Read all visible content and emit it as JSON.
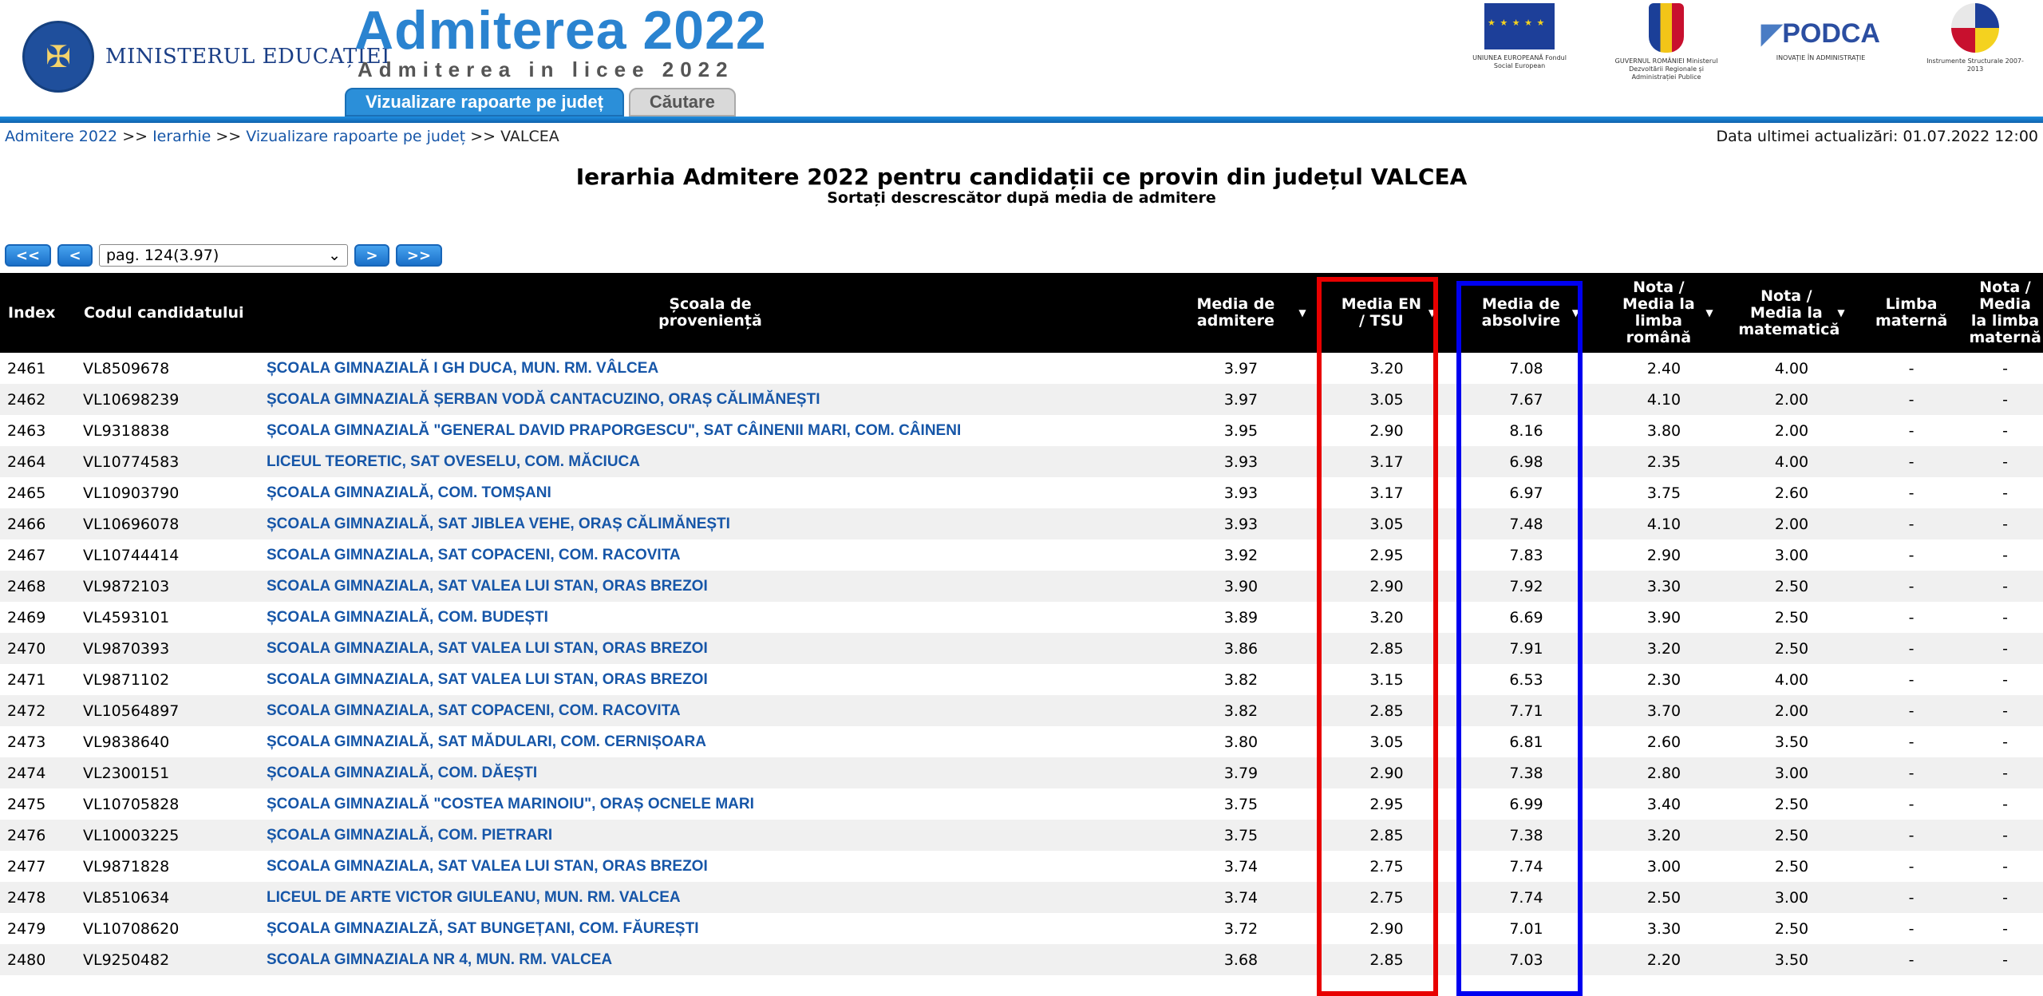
{
  "header": {
    "ministry_seal_text": "GUVERNUL ROMÂNIEI",
    "ministry_name": "MINISTERUL EDUCAȚIEI",
    "brand_title": "Admiterea 2022",
    "brand_subtitle": "Admiterea in licee 2022",
    "partners": [
      {
        "icon": "eu-flag-icon",
        "caption": "UNIUNEA EUROPEANĂ Fondul Social European"
      },
      {
        "icon": "romania-crest-icon",
        "caption": "GUVERNUL ROMÂNIEI Ministerul Dezvoltării Regionale și Administrației Publice"
      },
      {
        "icon": "podca-logo-icon",
        "label": "PODCA",
        "caption": "INOVAȚIE ÎN ADMINISTRAȚIE"
      },
      {
        "icon": "instrumente-structurale-icon",
        "caption": "Instrumente Structurale 2007-2013"
      }
    ],
    "tabs": {
      "active": "Vizualizare rapoarte pe județ",
      "inactive": "Căutare"
    },
    "accent_color": "#2b8fd9"
  },
  "breadcrumb": {
    "items": [
      "Admitere 2022",
      "Ierarhie",
      "Vizualizare rapoarte pe județ"
    ],
    "separator": ">>",
    "current": "VALCEA"
  },
  "updated": "Data ultimei actualizări: 01.07.2022 12:00",
  "title": "Ierarhia Admitere 2022 pentru candidații ce provin din județul VALCEA",
  "subtitle": "Sortați descrescător după media de admitere",
  "pager": {
    "first": "<<",
    "prev": "<",
    "selected": "pag. 124(3.97)",
    "next": ">",
    "last": ">>"
  },
  "table": {
    "headers": {
      "index": "Index",
      "code": "Codul candidatului",
      "school": "Școala de proveniență",
      "adm": "Media de admitere",
      "en": "Media EN / TSU",
      "abs": "Media de absolvire",
      "ro": "Nota / Media la limba română",
      "mat": "Nota / Media la matematică",
      "lm": "Limba maternă",
      "nlm": "Nota / Media la limba maternă"
    },
    "rows": [
      {
        "index": "2461",
        "code": "VL8509678",
        "school": "ȘCOALA GIMNAZIALĂ I GH DUCA, MUN. RM. VÂLCEA",
        "adm": "3.97",
        "en": "3.20",
        "abs": "7.08",
        "ro": "2.40",
        "mat": "4.00",
        "lm": "-",
        "nlm": "-"
      },
      {
        "index": "2462",
        "code": "VL10698239",
        "school": "ȘCOALA GIMNAZIALĂ ȘERBAN VODĂ CANTACUZINO, ORAȘ CĂLIMĂNEȘTI",
        "adm": "3.97",
        "en": "3.05",
        "abs": "7.67",
        "ro": "4.10",
        "mat": "2.00",
        "lm": "-",
        "nlm": "-"
      },
      {
        "index": "2463",
        "code": "VL9318838",
        "school": "ȘCOALA GIMNAZIALĂ \"GENERAL DAVID PRAPORGESCU\", SAT CÂINENII MARI, COM. CÂINENI",
        "adm": "3.95",
        "en": "2.90",
        "abs": "8.16",
        "ro": "3.80",
        "mat": "2.00",
        "lm": "-",
        "nlm": "-"
      },
      {
        "index": "2464",
        "code": "VL10774583",
        "school": "LICEUL TEORETIC, SAT OVESELU, COM. MĂCIUCA",
        "adm": "3.93",
        "en": "3.17",
        "abs": "6.98",
        "ro": "2.35",
        "mat": "4.00",
        "lm": "-",
        "nlm": "-"
      },
      {
        "index": "2465",
        "code": "VL10903790",
        "school": "ȘCOALA GIMNAZIALĂ, COM. TOMȘANI",
        "adm": "3.93",
        "en": "3.17",
        "abs": "6.97",
        "ro": "3.75",
        "mat": "2.60",
        "lm": "-",
        "nlm": "-"
      },
      {
        "index": "2466",
        "code": "VL10696078",
        "school": "ȘCOALA GIMNAZIALĂ, SAT JIBLEA VEHE, ORAȘ CĂLIMĂNEȘTI",
        "adm": "3.93",
        "en": "3.05",
        "abs": "7.48",
        "ro": "4.10",
        "mat": "2.00",
        "lm": "-",
        "nlm": "-"
      },
      {
        "index": "2467",
        "code": "VL10744414",
        "school": "SCOALA GIMNAZIALA, SAT COPACENI, COM. RACOVITA",
        "adm": "3.92",
        "en": "2.95",
        "abs": "7.83",
        "ro": "2.90",
        "mat": "3.00",
        "lm": "-",
        "nlm": "-"
      },
      {
        "index": "2468",
        "code": "VL9872103",
        "school": "SCOALA GIMNAZIALA, SAT VALEA LUI STAN, ORAS BREZOI",
        "adm": "3.90",
        "en": "2.90",
        "abs": "7.92",
        "ro": "3.30",
        "mat": "2.50",
        "lm": "-",
        "nlm": "-"
      },
      {
        "index": "2469",
        "code": "VL4593101",
        "school": "ȘCOALA GIMNAZIALĂ, COM. BUDEȘTI",
        "adm": "3.89",
        "en": "3.20",
        "abs": "6.69",
        "ro": "3.90",
        "mat": "2.50",
        "lm": "-",
        "nlm": "-"
      },
      {
        "index": "2470",
        "code": "VL9870393",
        "school": "SCOALA GIMNAZIALA, SAT VALEA LUI STAN, ORAS BREZOI",
        "adm": "3.86",
        "en": "2.85",
        "abs": "7.91",
        "ro": "3.20",
        "mat": "2.50",
        "lm": "-",
        "nlm": "-"
      },
      {
        "index": "2471",
        "code": "VL9871102",
        "school": "SCOALA GIMNAZIALA, SAT VALEA LUI STAN, ORAS BREZOI",
        "adm": "3.82",
        "en": "3.15",
        "abs": "6.53",
        "ro": "2.30",
        "mat": "4.00",
        "lm": "-",
        "nlm": "-"
      },
      {
        "index": "2472",
        "code": "VL10564897",
        "school": "SCOALA GIMNAZIALA, SAT COPACENI, COM. RACOVITA",
        "adm": "3.82",
        "en": "2.85",
        "abs": "7.71",
        "ro": "3.70",
        "mat": "2.00",
        "lm": "-",
        "nlm": "-"
      },
      {
        "index": "2473",
        "code": "VL9838640",
        "school": "ȘCOALA GIMNAZIALĂ, SAT MĂDULARI, COM. CERNIȘOARA",
        "adm": "3.80",
        "en": "3.05",
        "abs": "6.81",
        "ro": "2.60",
        "mat": "3.50",
        "lm": "-",
        "nlm": "-"
      },
      {
        "index": "2474",
        "code": "VL2300151",
        "school": "ȘCOALA GIMNAZIALĂ, COM. DĂEȘTI",
        "adm": "3.79",
        "en": "2.90",
        "abs": "7.38",
        "ro": "2.80",
        "mat": "3.00",
        "lm": "-",
        "nlm": "-"
      },
      {
        "index": "2475",
        "code": "VL10705828",
        "school": "ȘCOALA GIMNAZIALĂ \"COSTEA MARINOIU\", ORAȘ OCNELE MARI",
        "adm": "3.75",
        "en": "2.95",
        "abs": "6.99",
        "ro": "3.40",
        "mat": "2.50",
        "lm": "-",
        "nlm": "-"
      },
      {
        "index": "2476",
        "code": "VL10003225",
        "school": "ȘCOALA GIMNAZIALĂ, COM. PIETRARI",
        "adm": "3.75",
        "en": "2.85",
        "abs": "7.38",
        "ro": "3.20",
        "mat": "2.50",
        "lm": "-",
        "nlm": "-"
      },
      {
        "index": "2477",
        "code": "VL9871828",
        "school": "SCOALA GIMNAZIALA, SAT VALEA LUI STAN, ORAS BREZOI",
        "adm": "3.74",
        "en": "2.75",
        "abs": "7.74",
        "ro": "3.00",
        "mat": "2.50",
        "lm": "-",
        "nlm": "-"
      },
      {
        "index": "2478",
        "code": "VL8510634",
        "school": "LICEUL DE ARTE VICTOR GIULEANU, MUN. RM. VALCEA",
        "adm": "3.74",
        "en": "2.75",
        "abs": "7.74",
        "ro": "2.50",
        "mat": "3.00",
        "lm": "-",
        "nlm": "-"
      },
      {
        "index": "2479",
        "code": "VL10708620",
        "school": "ȘCOALA GIMNAZIALZĂ, SAT BUNGEȚANI, COM. FĂUREȘTI",
        "adm": "3.72",
        "en": "2.90",
        "abs": "7.01",
        "ro": "3.30",
        "mat": "2.50",
        "lm": "-",
        "nlm": "-"
      },
      {
        "index": "2480",
        "code": "VL9250482",
        "school": "SCOALA GIMNAZIALA NR 4, MUN. RM. VALCEA",
        "adm": "3.68",
        "en": "2.85",
        "abs": "7.03",
        "ro": "2.20",
        "mat": "3.50",
        "lm": "-",
        "nlm": "-"
      }
    ]
  },
  "highlights": {
    "en_column_color": "#e80000",
    "abs_column_color": "#0000f0"
  }
}
